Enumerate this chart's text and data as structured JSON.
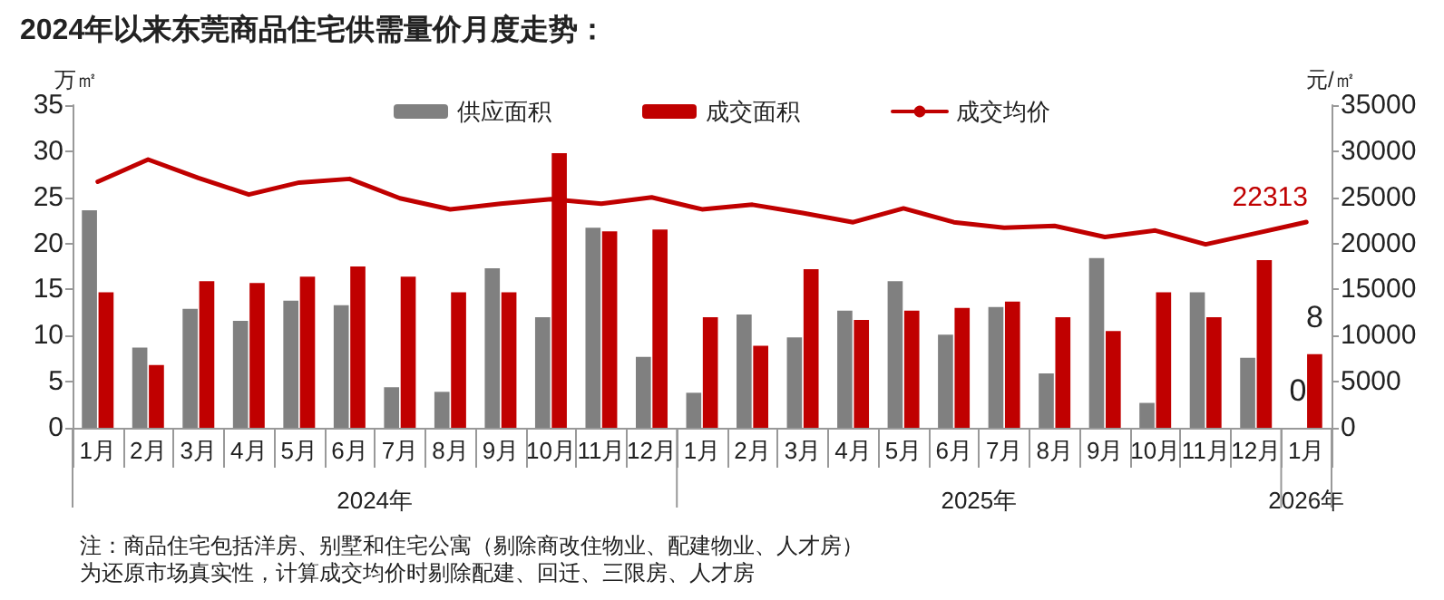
{
  "chart_data": {
    "type": "bar",
    "title": "2024年以来东莞商品住宅供需量价月度走势：",
    "categories": [
      "1月",
      "2月",
      "3月",
      "4月",
      "5月",
      "6月",
      "7月",
      "8月",
      "9月",
      "10月",
      "11月",
      "12月",
      "1月",
      "2月",
      "3月",
      "4月",
      "5月",
      "6月",
      "7月",
      "8月",
      "9月",
      "10月",
      "11月",
      "12月",
      "1月"
    ],
    "series": [
      {
        "name": "供应面积",
        "color": "#808080",
        "values": [
          23.6,
          8.7,
          12.9,
          11.6,
          13.8,
          13.3,
          4.4,
          3.9,
          17.3,
          12.0,
          21.7,
          7.7,
          3.8,
          12.3,
          9.8,
          12.7,
          15.9,
          10.1,
          13.1,
          5.9,
          18.4,
          2.7,
          14.7,
          7.6,
          0
        ],
        "value_labels": [
          null,
          null,
          null,
          null,
          null,
          null,
          null,
          null,
          null,
          null,
          null,
          null,
          null,
          null,
          null,
          null,
          null,
          null,
          null,
          null,
          null,
          null,
          null,
          null,
          "0"
        ]
      },
      {
        "name": "成交面积",
        "color": "#c00000",
        "values": [
          14.7,
          6.8,
          15.9,
          15.7,
          16.4,
          17.5,
          16.4,
          14.7,
          14.7,
          29.8,
          21.3,
          21.5,
          12.0,
          8.9,
          17.2,
          11.7,
          12.7,
          13.0,
          13.7,
          12.0,
          10.5,
          14.7,
          12.0,
          18.2,
          8
        ],
        "value_labels": [
          null,
          null,
          null,
          null,
          null,
          null,
          null,
          null,
          null,
          null,
          null,
          null,
          null,
          null,
          null,
          null,
          null,
          null,
          null,
          null,
          null,
          null,
          null,
          null,
          "8"
        ]
      },
      {
        "name": "成交均价",
        "type": "line",
        "axis": "y2",
        "color": "#c00000",
        "values": [
          26700,
          29100,
          27100,
          25300,
          26600,
          27000,
          24900,
          23700,
          24300,
          24800,
          24300,
          25000,
          23700,
          24200,
          23300,
          22300,
          23800,
          22300,
          21700,
          21900,
          20700,
          21400,
          19900,
          21100,
          22313
        ],
        "value_labels": [
          null,
          null,
          null,
          null,
          null,
          null,
          null,
          null,
          null,
          null,
          null,
          null,
          null,
          null,
          null,
          null,
          null,
          null,
          null,
          null,
          null,
          null,
          null,
          null,
          "22313"
        ]
      }
    ],
    "ylabel": "万㎡",
    "y2label": "元/㎡",
    "ylim": [
      0,
      35
    ],
    "yticks": [
      0,
      5,
      10,
      15,
      20,
      25,
      30,
      35
    ],
    "y2lim": [
      0,
      35000
    ],
    "y2ticks": [
      0,
      5000,
      10000,
      15000,
      20000,
      25000,
      30000,
      35000
    ],
    "grid": false,
    "legend": "top",
    "marker": "none",
    "line_style": "solid",
    "annotations": [
      "2024年",
      "2025年",
      "2026年",
      "注：商品住宅包括洋房、别墅和住宅公寓（剔除商改住物业、配建物业、人才房）",
      "为还原市场真实性，计算成交均价时剔除配建、回迁、三限房、人才房"
    ]
  }
}
